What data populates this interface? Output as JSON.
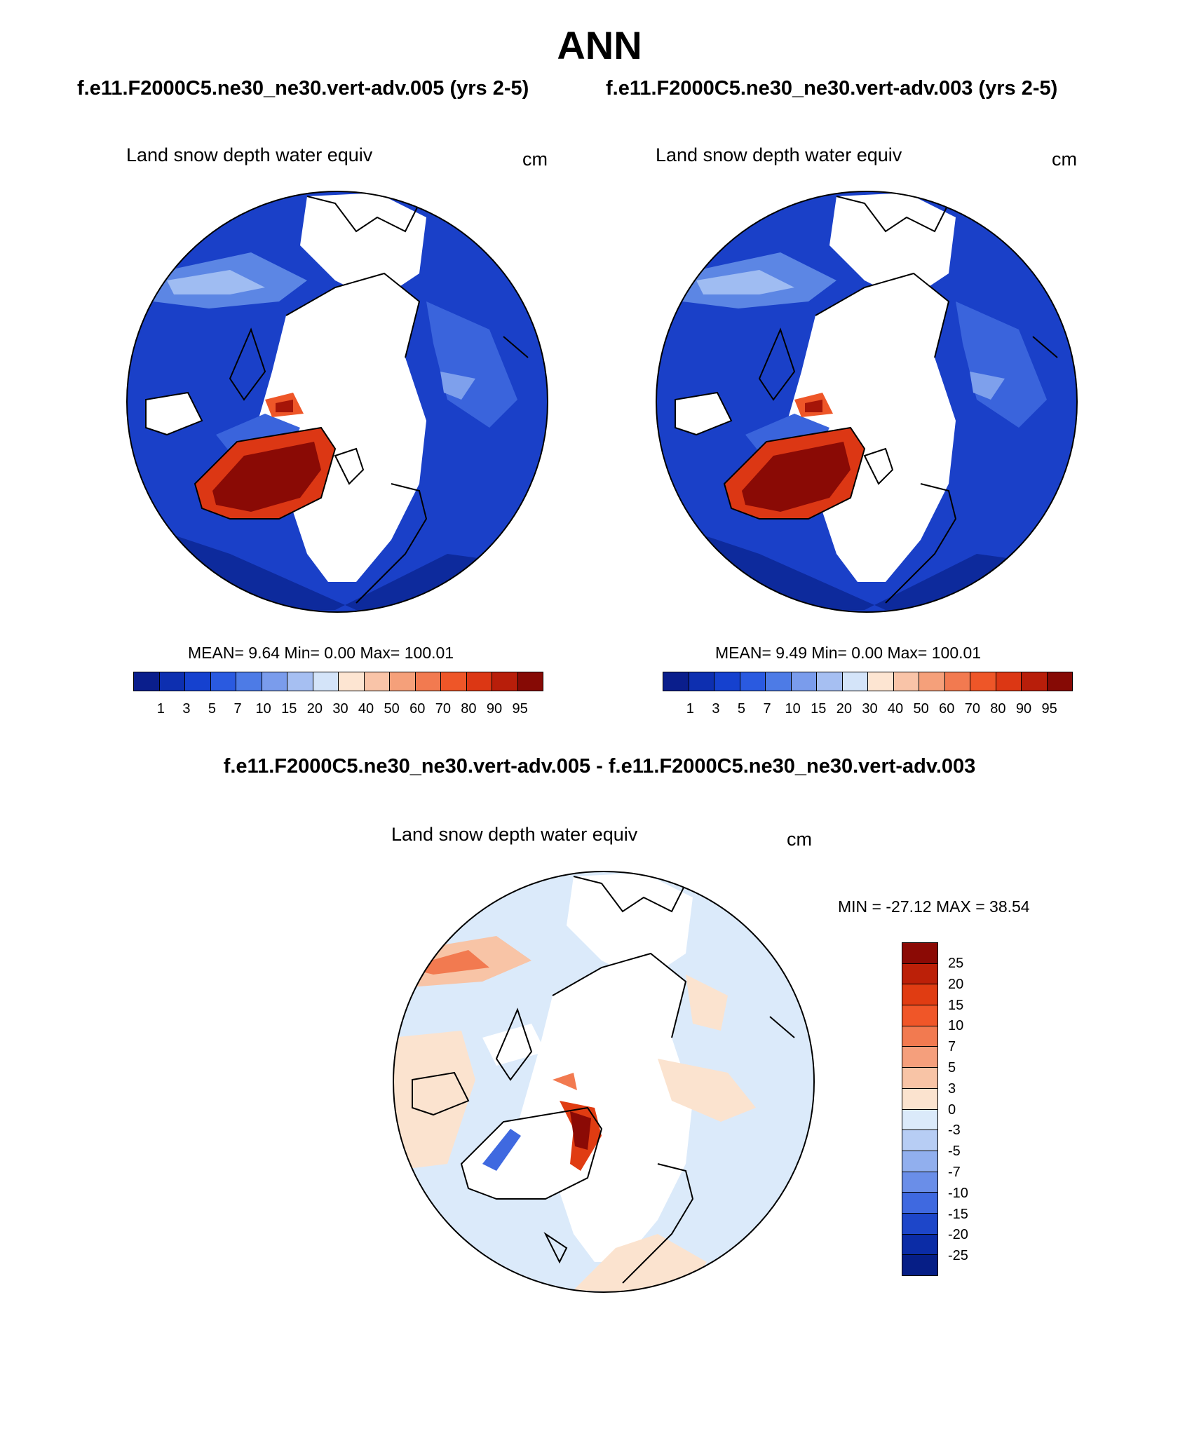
{
  "title": "ANN",
  "panels": [
    {
      "subtitle": "f.e11.F2000C5.ne30_ne30.vert-adv.005 (yrs 2-5)",
      "label": "Land snow depth water equiv",
      "unit": "cm",
      "stats": "MEAN=   9.64  Min=    0.00  Max= 100.01"
    },
    {
      "subtitle": "f.e11.F2000C5.ne30_ne30.vert-adv.003 (yrs 2-5)",
      "label": "Land snow depth water equiv",
      "unit": "cm",
      "stats": "MEAN=   9.49  Min=    0.00  Max= 100.01"
    }
  ],
  "difference": {
    "title": "f.e11.F2000C5.ne30_ne30.vert-adv.005 - f.e11.F2000C5.ne30_ne30.vert-adv.003",
    "label": "Land snow depth water equiv",
    "unit": "cm",
    "stats": "MIN = -27.12 MAX =  38.54"
  },
  "colorbar_abs": {
    "labels": [
      "1",
      "3",
      "5",
      "7",
      "10",
      "15",
      "20",
      "30",
      "40",
      "50",
      "60",
      "70",
      "80",
      "90",
      "95"
    ],
    "colors": [
      "#0a1e8c",
      "#0d2fb0",
      "#1541cf",
      "#2a5ae0",
      "#4d7be6",
      "#7a9cec",
      "#a6bff2",
      "#d4e4f9",
      "#fde5d2",
      "#f9c4a8",
      "#f5a07a",
      "#f27a50",
      "#ee5628",
      "#dc3714",
      "#b81e0a",
      "#860a05"
    ]
  },
  "colorbar_diff": {
    "labels": [
      "25",
      "20",
      "15",
      "10",
      "7",
      "5",
      "3",
      "0",
      "-3",
      "-5",
      "-7",
      "-10",
      "-15",
      "-20",
      "-25"
    ],
    "colors": [
      "#8b0a05",
      "#bc2008",
      "#e03c12",
      "#f05628",
      "#f27a50",
      "#f59f7c",
      "#f8c4a6",
      "#fbe3cf",
      "#dbeafa",
      "#b7cdf4",
      "#91afee",
      "#6a8ee8",
      "#3f69e0",
      "#1d46c9",
      "#0b2ca6",
      "#061e86"
    ]
  }
}
